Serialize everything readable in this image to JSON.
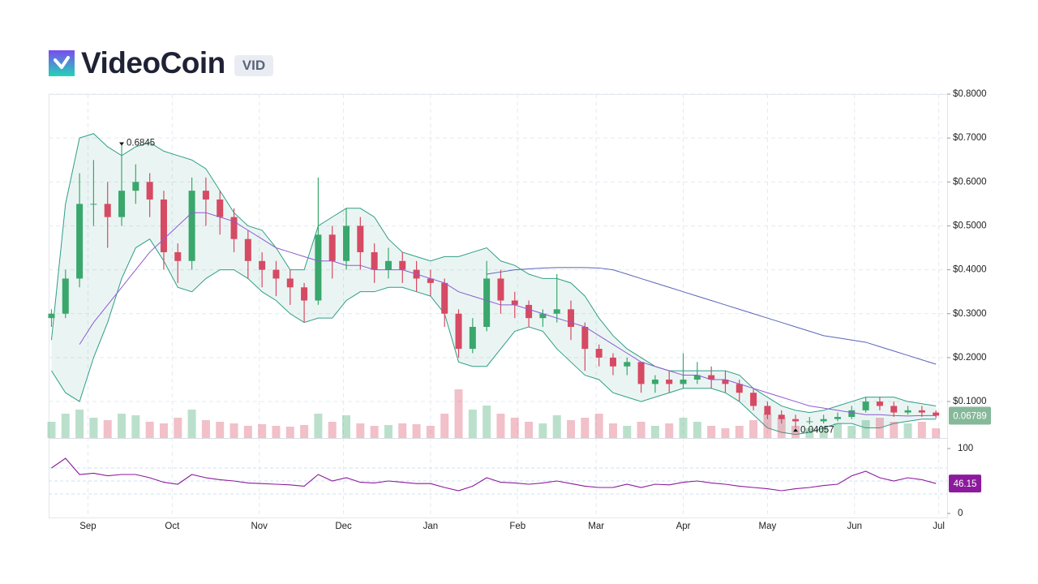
{
  "chart_data": {
    "type": "candlestick",
    "title": "VideoCoin",
    "symbol": "VID",
    "x": [
      0,
      5,
      10,
      15,
      20,
      25,
      30,
      35,
      40,
      45,
      50,
      55,
      60,
      65,
      70,
      75,
      80,
      85,
      90,
      95,
      100,
      105,
      110,
      115,
      120,
      125,
      130,
      135,
      140,
      145,
      150,
      155,
      160,
      165,
      170,
      175,
      180,
      185,
      190,
      195,
      200,
      205,
      210,
      215,
      220,
      225,
      230,
      235,
      240,
      245,
      250,
      255,
      260,
      265,
      270,
      275,
      280,
      285,
      290,
      295,
      300,
      305,
      310,
      315
    ],
    "open": [
      0.29,
      0.3,
      0.38,
      0.55,
      0.55,
      0.52,
      0.58,
      0.6,
      0.56,
      0.44,
      0.42,
      0.58,
      0.56,
      0.52,
      0.47,
      0.42,
      0.4,
      0.38,
      0.36,
      0.33,
      0.48,
      0.42,
      0.5,
      0.44,
      0.4,
      0.42,
      0.4,
      0.38,
      0.37,
      0.3,
      0.22,
      0.27,
      0.38,
      0.33,
      0.32,
      0.29,
      0.3,
      0.31,
      0.27,
      0.22,
      0.2,
      0.18,
      0.19,
      0.14,
      0.15,
      0.14,
      0.15,
      0.16,
      0.15,
      0.14,
      0.12,
      0.09,
      0.07,
      0.06,
      0.055,
      0.055,
      0.06,
      0.065,
      0.08,
      0.1,
      0.09,
      0.075,
      0.08,
      0.075
    ],
    "high": [
      0.31,
      0.4,
      0.62,
      0.65,
      0.6,
      0.6845,
      0.64,
      0.62,
      0.58,
      0.46,
      0.61,
      0.61,
      0.58,
      0.54,
      0.49,
      0.44,
      0.42,
      0.4,
      0.37,
      0.61,
      0.5,
      0.54,
      0.52,
      0.46,
      0.45,
      0.44,
      0.42,
      0.4,
      0.38,
      0.31,
      0.29,
      0.42,
      0.4,
      0.35,
      0.33,
      0.31,
      0.39,
      0.33,
      0.28,
      0.23,
      0.21,
      0.2,
      0.19,
      0.16,
      0.17,
      0.21,
      0.19,
      0.18,
      0.17,
      0.15,
      0.13,
      0.1,
      0.08,
      0.07,
      0.065,
      0.07,
      0.075,
      0.09,
      0.11,
      0.11,
      0.1,
      0.09,
      0.09,
      0.08
    ],
    "low": [
      0.27,
      0.29,
      0.36,
      0.5,
      0.45,
      0.5,
      0.55,
      0.52,
      0.4,
      0.37,
      0.4,
      0.5,
      0.48,
      0.44,
      0.38,
      0.36,
      0.34,
      0.32,
      0.28,
      0.32,
      0.38,
      0.4,
      0.4,
      0.37,
      0.38,
      0.37,
      0.35,
      0.34,
      0.27,
      0.2,
      0.21,
      0.26,
      0.3,
      0.29,
      0.27,
      0.27,
      0.28,
      0.24,
      0.17,
      0.18,
      0.16,
      0.16,
      0.12,
      0.12,
      0.12,
      0.13,
      0.14,
      0.13,
      0.12,
      0.1,
      0.08,
      0.06,
      0.05,
      0.04057,
      0.048,
      0.05,
      0.055,
      0.06,
      0.075,
      0.08,
      0.065,
      0.07,
      0.065,
      0.062
    ],
    "close": [
      0.3,
      0.38,
      0.55,
      0.55,
      0.52,
      0.58,
      0.6,
      0.56,
      0.44,
      0.42,
      0.58,
      0.56,
      0.52,
      0.47,
      0.42,
      0.4,
      0.38,
      0.36,
      0.33,
      0.48,
      0.42,
      0.5,
      0.44,
      0.4,
      0.42,
      0.4,
      0.38,
      0.37,
      0.3,
      0.22,
      0.27,
      0.38,
      0.33,
      0.32,
      0.29,
      0.3,
      0.31,
      0.27,
      0.22,
      0.2,
      0.18,
      0.19,
      0.14,
      0.15,
      0.14,
      0.15,
      0.16,
      0.15,
      0.14,
      0.12,
      0.09,
      0.07,
      0.06,
      0.055,
      0.055,
      0.06,
      0.065,
      0.08,
      0.1,
      0.09,
      0.075,
      0.08,
      0.075,
      0.06789
    ],
    "volume": [
      20,
      30,
      35,
      25,
      22,
      30,
      28,
      20,
      18,
      25,
      35,
      22,
      20,
      18,
      15,
      17,
      15,
      14,
      16,
      30,
      20,
      28,
      18,
      15,
      16,
      18,
      17,
      15,
      30,
      60,
      35,
      40,
      30,
      25,
      20,
      18,
      28,
      22,
      25,
      30,
      18,
      15,
      20,
      15,
      18,
      25,
      20,
      15,
      12,
      15,
      22,
      30,
      25,
      15,
      12,
      14,
      18,
      15,
      22,
      25,
      20,
      18,
      20,
      12
    ],
    "bollinger_upper": [
      0.24,
      0.55,
      0.7,
      0.71,
      0.68,
      0.66,
      0.68,
      0.69,
      0.67,
      0.66,
      0.65,
      0.63,
      0.58,
      0.53,
      0.5,
      0.49,
      0.45,
      0.4,
      0.4,
      0.5,
      0.52,
      0.54,
      0.54,
      0.52,
      0.47,
      0.44,
      0.43,
      0.42,
      0.43,
      0.43,
      0.44,
      0.45,
      0.42,
      0.41,
      0.39,
      0.38,
      0.38,
      0.37,
      0.34,
      0.29,
      0.25,
      0.22,
      0.2,
      0.18,
      0.17,
      0.17,
      0.17,
      0.17,
      0.17,
      0.16,
      0.13,
      0.11,
      0.09,
      0.08,
      0.075,
      0.08,
      0.09,
      0.1,
      0.11,
      0.11,
      0.11,
      0.1,
      0.095,
      0.09
    ],
    "bollinger_lower": [
      0.17,
      0.12,
      0.1,
      0.2,
      0.28,
      0.38,
      0.45,
      0.47,
      0.42,
      0.36,
      0.35,
      0.38,
      0.4,
      0.4,
      0.38,
      0.35,
      0.33,
      0.3,
      0.28,
      0.29,
      0.29,
      0.33,
      0.35,
      0.35,
      0.36,
      0.36,
      0.35,
      0.34,
      0.3,
      0.19,
      0.18,
      0.18,
      0.22,
      0.26,
      0.27,
      0.26,
      0.22,
      0.19,
      0.16,
      0.15,
      0.12,
      0.11,
      0.1,
      0.11,
      0.12,
      0.13,
      0.13,
      0.13,
      0.12,
      0.1,
      0.07,
      0.04,
      0.03,
      0.025,
      0.03,
      0.04,
      0.05,
      0.05,
      0.04,
      0.04,
      0.05,
      0.055,
      0.06,
      0.06
    ],
    "ma_short": [
      null,
      null,
      0.23,
      0.28,
      0.32,
      0.36,
      0.4,
      0.44,
      0.47,
      0.5,
      0.53,
      0.53,
      0.52,
      0.51,
      0.49,
      0.47,
      0.45,
      0.44,
      0.43,
      0.42,
      0.42,
      0.41,
      0.41,
      0.4,
      0.4,
      0.4,
      0.39,
      0.38,
      0.37,
      0.35,
      0.34,
      0.33,
      0.32,
      0.32,
      0.31,
      0.3,
      0.29,
      0.28,
      0.27,
      0.25,
      0.23,
      0.21,
      0.19,
      0.18,
      0.17,
      0.16,
      0.16,
      0.15,
      0.15,
      0.14,
      0.13,
      0.12,
      0.11,
      0.1,
      0.09,
      0.085,
      0.08,
      0.075,
      0.07,
      0.07,
      0.068,
      0.067,
      0.068,
      0.068
    ],
    "ma_long": [
      null,
      null,
      null,
      null,
      null,
      null,
      null,
      null,
      null,
      null,
      null,
      null,
      null,
      null,
      null,
      null,
      null,
      null,
      null,
      null,
      null,
      null,
      null,
      null,
      null,
      null,
      null,
      null,
      null,
      null,
      null,
      0.39,
      0.395,
      0.4,
      0.402,
      0.404,
      0.405,
      0.405,
      0.405,
      0.404,
      0.4,
      0.39,
      0.38,
      0.37,
      0.36,
      0.35,
      0.34,
      0.33,
      0.32,
      0.31,
      0.3,
      0.29,
      0.28,
      0.27,
      0.26,
      0.25,
      0.245,
      0.24,
      0.235,
      0.225,
      0.215,
      0.205,
      0.195,
      0.185
    ],
    "rsi": [
      70,
      85,
      60,
      62,
      58,
      60,
      60,
      55,
      48,
      45,
      60,
      55,
      52,
      50,
      47,
      46,
      45,
      44,
      42,
      60,
      50,
      55,
      48,
      47,
      50,
      48,
      46,
      46,
      40,
      35,
      42,
      55,
      48,
      47,
      45,
      47,
      50,
      46,
      42,
      40,
      40,
      45,
      40,
      45,
      44,
      48,
      50,
      47,
      45,
      42,
      40,
      38,
      35,
      38,
      40,
      43,
      45,
      58,
      65,
      55,
      50,
      55,
      52,
      46.15
    ],
    "xlim": [
      -1,
      319
    ],
    "xticks": [
      {
        "value": 13,
        "label": "Sep"
      },
      {
        "value": 43,
        "label": "Oct"
      },
      {
        "value": 74,
        "label": "Nov"
      },
      {
        "value": 104,
        "label": "Dec"
      },
      {
        "value": 135,
        "label": "Jan"
      },
      {
        "value": 166,
        "label": "Feb"
      },
      {
        "value": 194,
        "label": "Mar"
      },
      {
        "value": 225,
        "label": "Apr"
      },
      {
        "value": 255,
        "label": "May"
      },
      {
        "value": 286,
        "label": "Jun"
      },
      {
        "value": 316,
        "label": "Jul"
      }
    ],
    "ylim": [
      0.017,
      0.8
    ],
    "yticks": [
      {
        "value": 0.1,
        "label": "$0.1000"
      },
      {
        "value": 0.2,
        "label": "$0.2000"
      },
      {
        "value": 0.3,
        "label": "$0.3000"
      },
      {
        "value": 0.4,
        "label": "$0.4000"
      },
      {
        "value": 0.5,
        "label": "$0.5000"
      },
      {
        "value": 0.6,
        "label": "$0.6000"
      },
      {
        "value": 0.7,
        "label": "$0.7000"
      },
      {
        "value": 0.8,
        "label": "$0.8000"
      }
    ],
    "volume_lim": [
      0,
      100
    ],
    "rsi_lim": [
      0,
      100
    ],
    "rsi_ticks": [
      0,
      100
    ],
    "rsi_guides": [
      30,
      50,
      70
    ],
    "grid": true,
    "up_color": "#3aa76d",
    "down_color": "#d64a63",
    "band_color": "#2f9e86",
    "ma_short_color": "#8e5bd1",
    "ma_long_color": "#5865b8",
    "rsi_color": "#8b1a9c",
    "price_badge_color": "#86b89a"
  }
}
